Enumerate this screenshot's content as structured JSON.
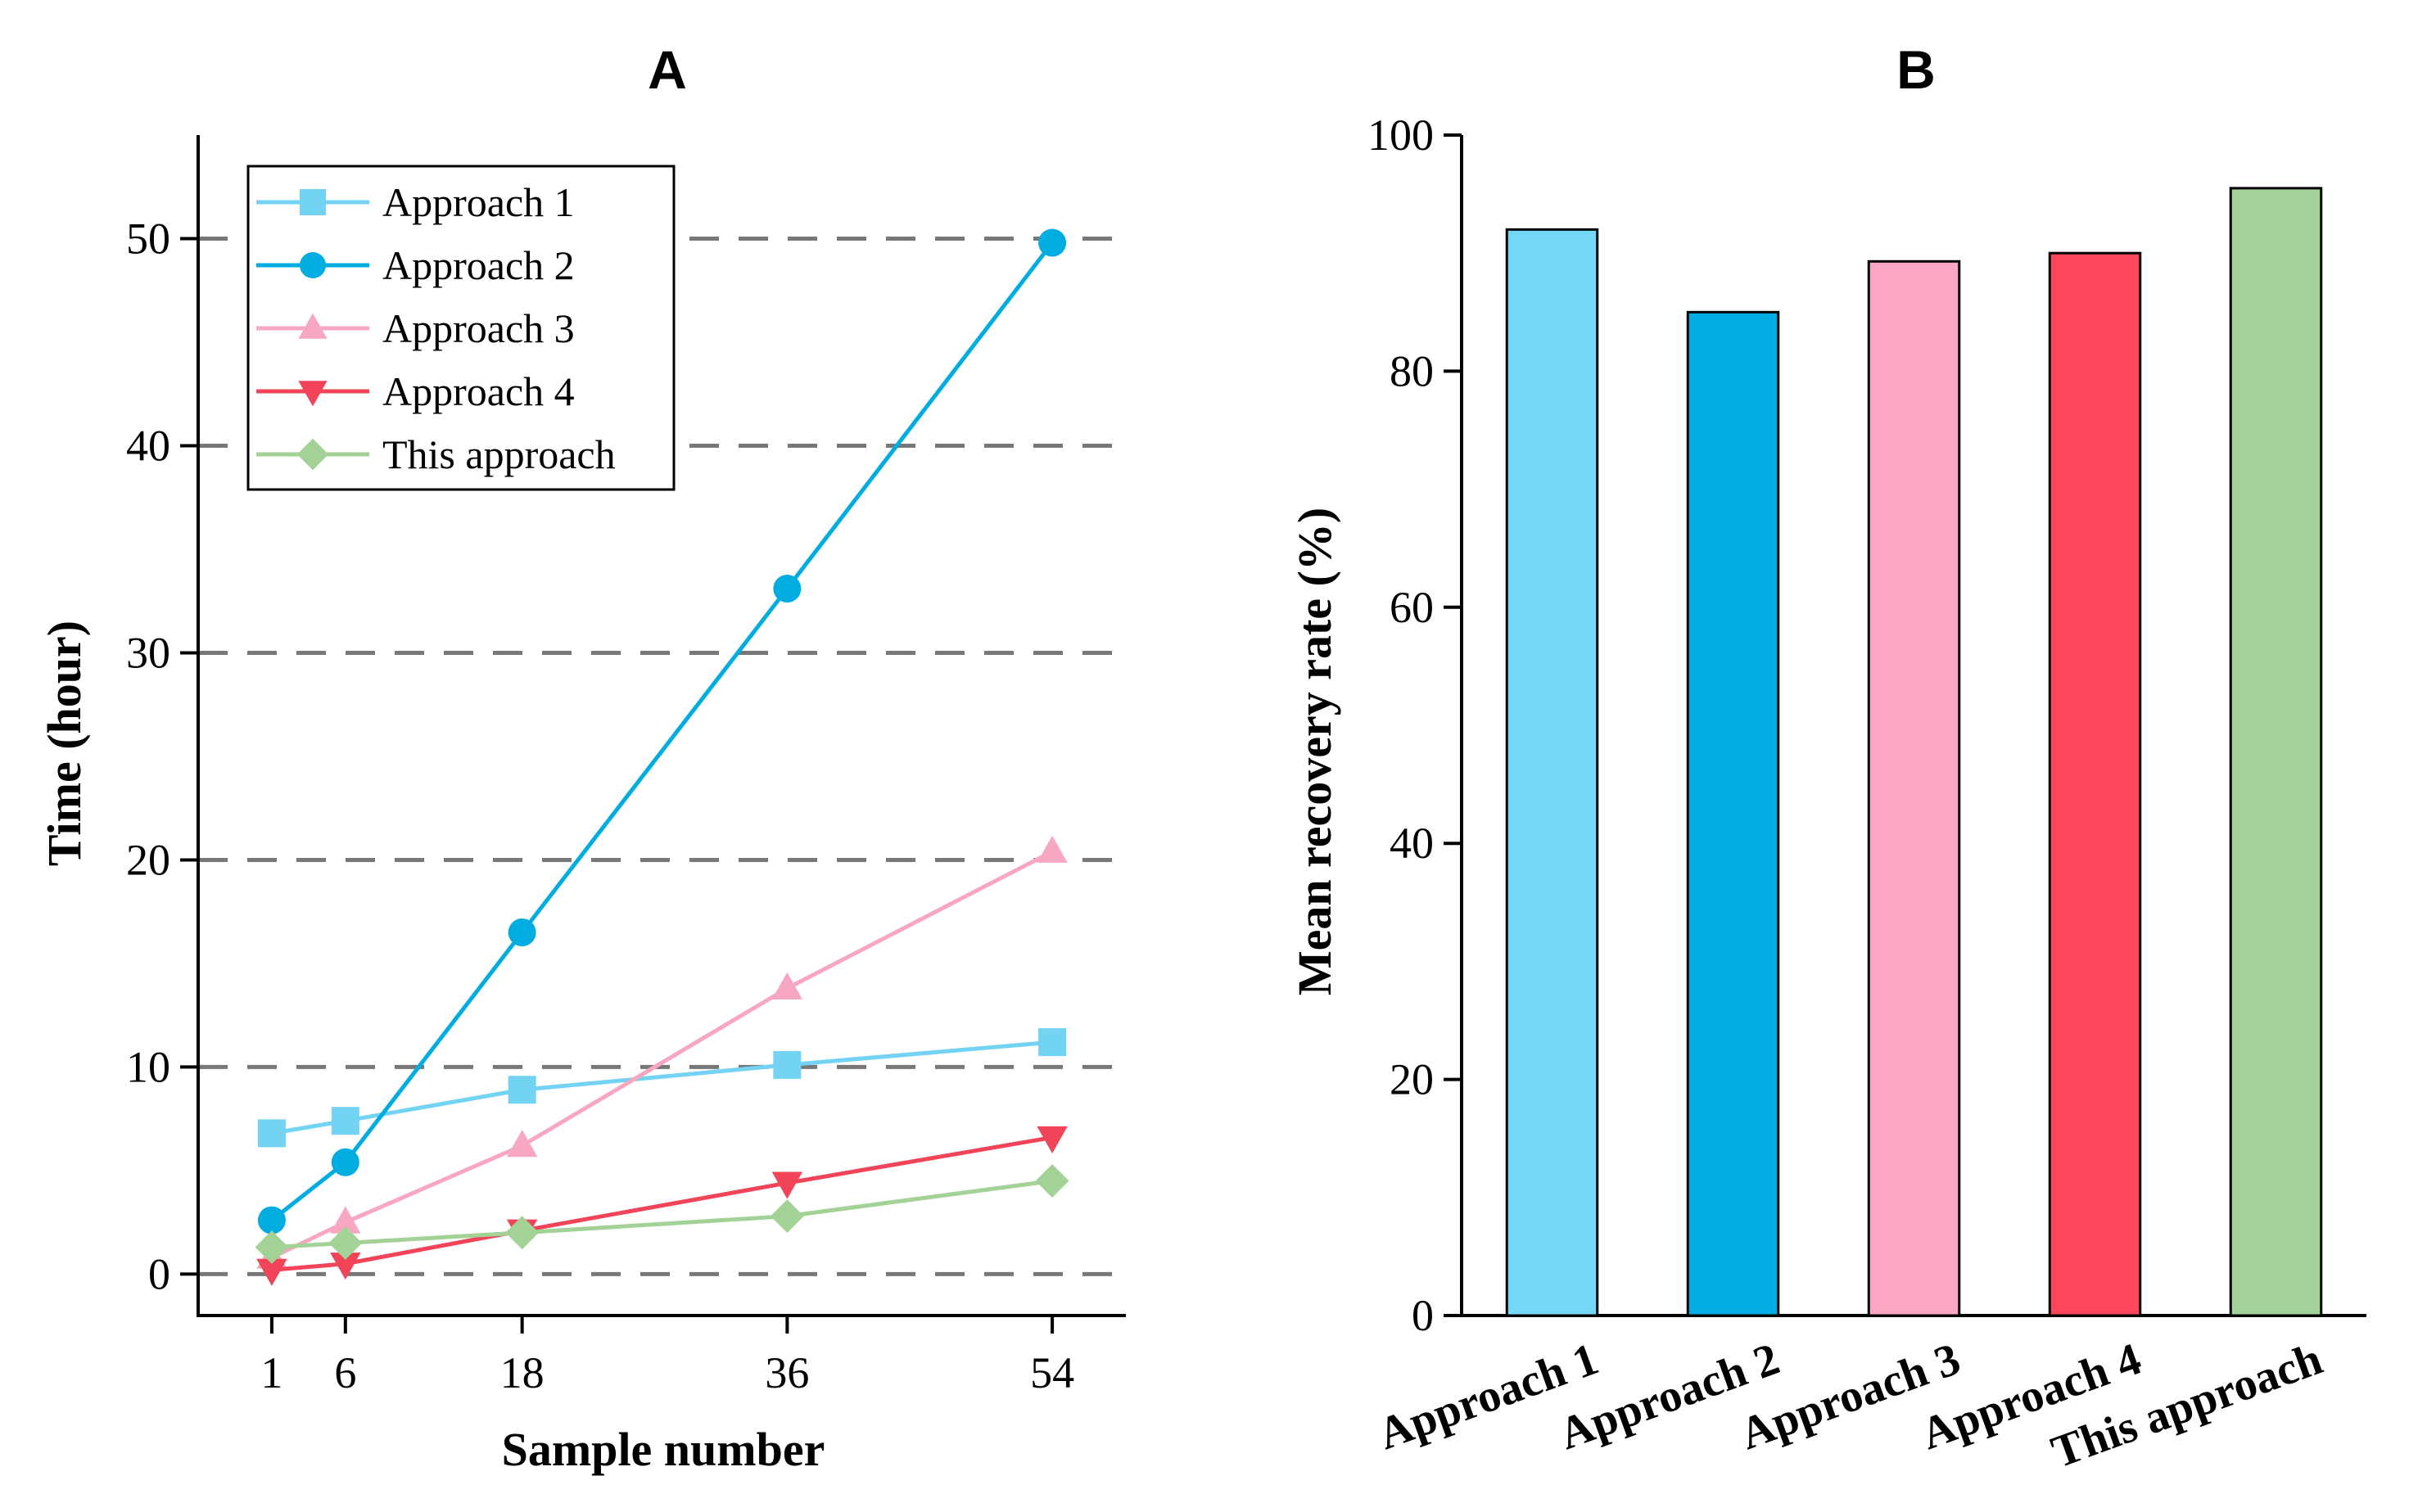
{
  "chart_data": [
    {
      "type": "line",
      "title": "A",
      "xlabel": "Sample number",
      "ylabel": "Time (hour)",
      "x": [
        1,
        6,
        18,
        36,
        54
      ],
      "xticks": [
        "1",
        "6",
        "18",
        "36",
        "54"
      ],
      "xlim": [
        -4,
        59
      ],
      "yticks": [
        "0",
        "10",
        "20",
        "30",
        "40",
        "50"
      ],
      "ylim": [
        -2,
        55
      ],
      "grid": "horizontal dashed",
      "legend_position": "top-left",
      "series": [
        {
          "name": "Approach 1",
          "values": [
            6.8,
            7.4,
            8.9,
            10.1,
            11.2
          ],
          "color": "#73D3F2",
          "marker": "square"
        },
        {
          "name": "Approach 2",
          "values": [
            2.6,
            5.4,
            16.5,
            33.1,
            49.8
          ],
          "color": "#00ACE0",
          "marker": "circle"
        },
        {
          "name": "Approach 3",
          "values": [
            0.8,
            2.5,
            6.2,
            13.8,
            20.4
          ],
          "color": "#F8A7C1",
          "marker": "triangle-up"
        },
        {
          "name": "Approach 4",
          "values": [
            0.2,
            0.5,
            2.1,
            4.4,
            6.6
          ],
          "color": "#F24459",
          "marker": "triangle-down"
        },
        {
          "name": "This approach",
          "values": [
            1.3,
            1.5,
            2.0,
            2.8,
            4.5
          ],
          "color": "#A2D296",
          "marker": "diamond"
        }
      ]
    },
    {
      "type": "bar",
      "title": "B",
      "xlabel": "",
      "ylabel": "Mean recovery rate (%)",
      "categories": [
        "Approach 1",
        "Approach 2",
        "Approach 3",
        "Approach 4",
        "This approach"
      ],
      "values": [
        92,
        85,
        89.3,
        90,
        95.5
      ],
      "colors": [
        "#73D7F5",
        "#00ACE3",
        "#FBA6C2",
        "#FC475A",
        "#A3D39A"
      ],
      "yticks": [
        "0",
        "20",
        "40",
        "60",
        "80",
        "100"
      ],
      "ylim": [
        0,
        100
      ]
    }
  ]
}
